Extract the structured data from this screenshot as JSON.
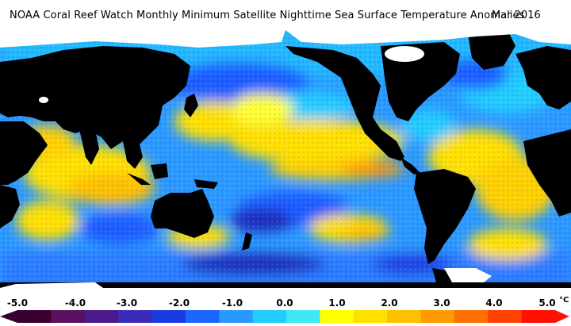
{
  "header": {
    "title": "NOAA Coral Reef Watch Monthly Minimum Satellite Nighttime Sea Surface Temperature Anomalies",
    "date": "Mar 2016"
  },
  "colorbar": {
    "ticks": [
      "-5.0",
      "-4.0",
      "-3.0",
      "-2.0",
      "-1.0",
      "0.0",
      "1.0",
      "2.0",
      "3.0",
      "4.0",
      "5.0"
    ],
    "unit": "°C",
    "colors": [
      "#3a0030",
      "#5a1060",
      "#4a1a8a",
      "#3a2ab8",
      "#1a3ae0",
      "#1a66ff",
      "#2a98ff",
      "#22ccff",
      "#3ee8f0",
      "#ffff00",
      "#ffe000",
      "#ffc000",
      "#ff9a00",
      "#ff7000",
      "#ff4000",
      "#ff1000"
    ]
  },
  "map": {
    "land_color": "#000000",
    "ice_color": "#ffffff",
    "ocean_palette": {
      "strong_cold": "#1a2ab8",
      "cold": "#1a5cff",
      "cool": "#2a9cff",
      "neutral": "#22d8ff",
      "slightly_warm": "#ffff30",
      "warm": "#ffd000",
      "hot": "#ff9a00"
    }
  }
}
